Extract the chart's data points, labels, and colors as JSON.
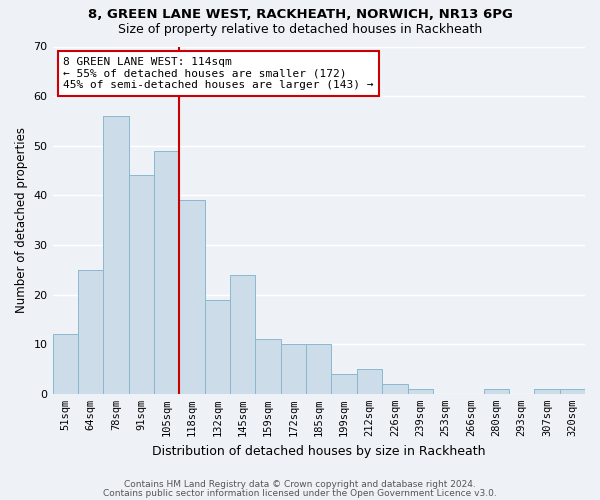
{
  "title1": "8, GREEN LANE WEST, RACKHEATH, NORWICH, NR13 6PG",
  "title2": "Size of property relative to detached houses in Rackheath",
  "xlabel": "Distribution of detached houses by size in Rackheath",
  "ylabel": "Number of detached properties",
  "bin_labels": [
    "51sqm",
    "64sqm",
    "78sqm",
    "91sqm",
    "105sqm",
    "118sqm",
    "132sqm",
    "145sqm",
    "159sqm",
    "172sqm",
    "185sqm",
    "199sqm",
    "212sqm",
    "226sqm",
    "239sqm",
    "253sqm",
    "266sqm",
    "280sqm",
    "293sqm",
    "307sqm",
    "320sqm"
  ],
  "bar_heights": [
    12,
    25,
    56,
    44,
    49,
    39,
    19,
    24,
    11,
    10,
    10,
    4,
    5,
    2,
    1,
    0,
    0,
    1,
    0,
    1,
    1
  ],
  "bar_color": "#ccdce8",
  "bar_edge_color": "#88b8d0",
  "reference_line_label": "8 GREEN LANE WEST: 114sqm",
  "annotation_line1": "← 55% of detached houses are smaller (172)",
  "annotation_line2": "45% of semi-detached houses are larger (143) →",
  "annotation_box_color": "#ffffff",
  "annotation_box_edge": "#cc0000",
  "ref_line_color": "#cc0000",
  "ref_line_x": 4.5,
  "ylim": [
    0,
    70
  ],
  "yticks": [
    0,
    10,
    20,
    30,
    40,
    50,
    60,
    70
  ],
  "footer1": "Contains HM Land Registry data © Crown copyright and database right 2024.",
  "footer2": "Contains public sector information licensed under the Open Government Licence v3.0.",
  "background_color": "#eef2f7"
}
